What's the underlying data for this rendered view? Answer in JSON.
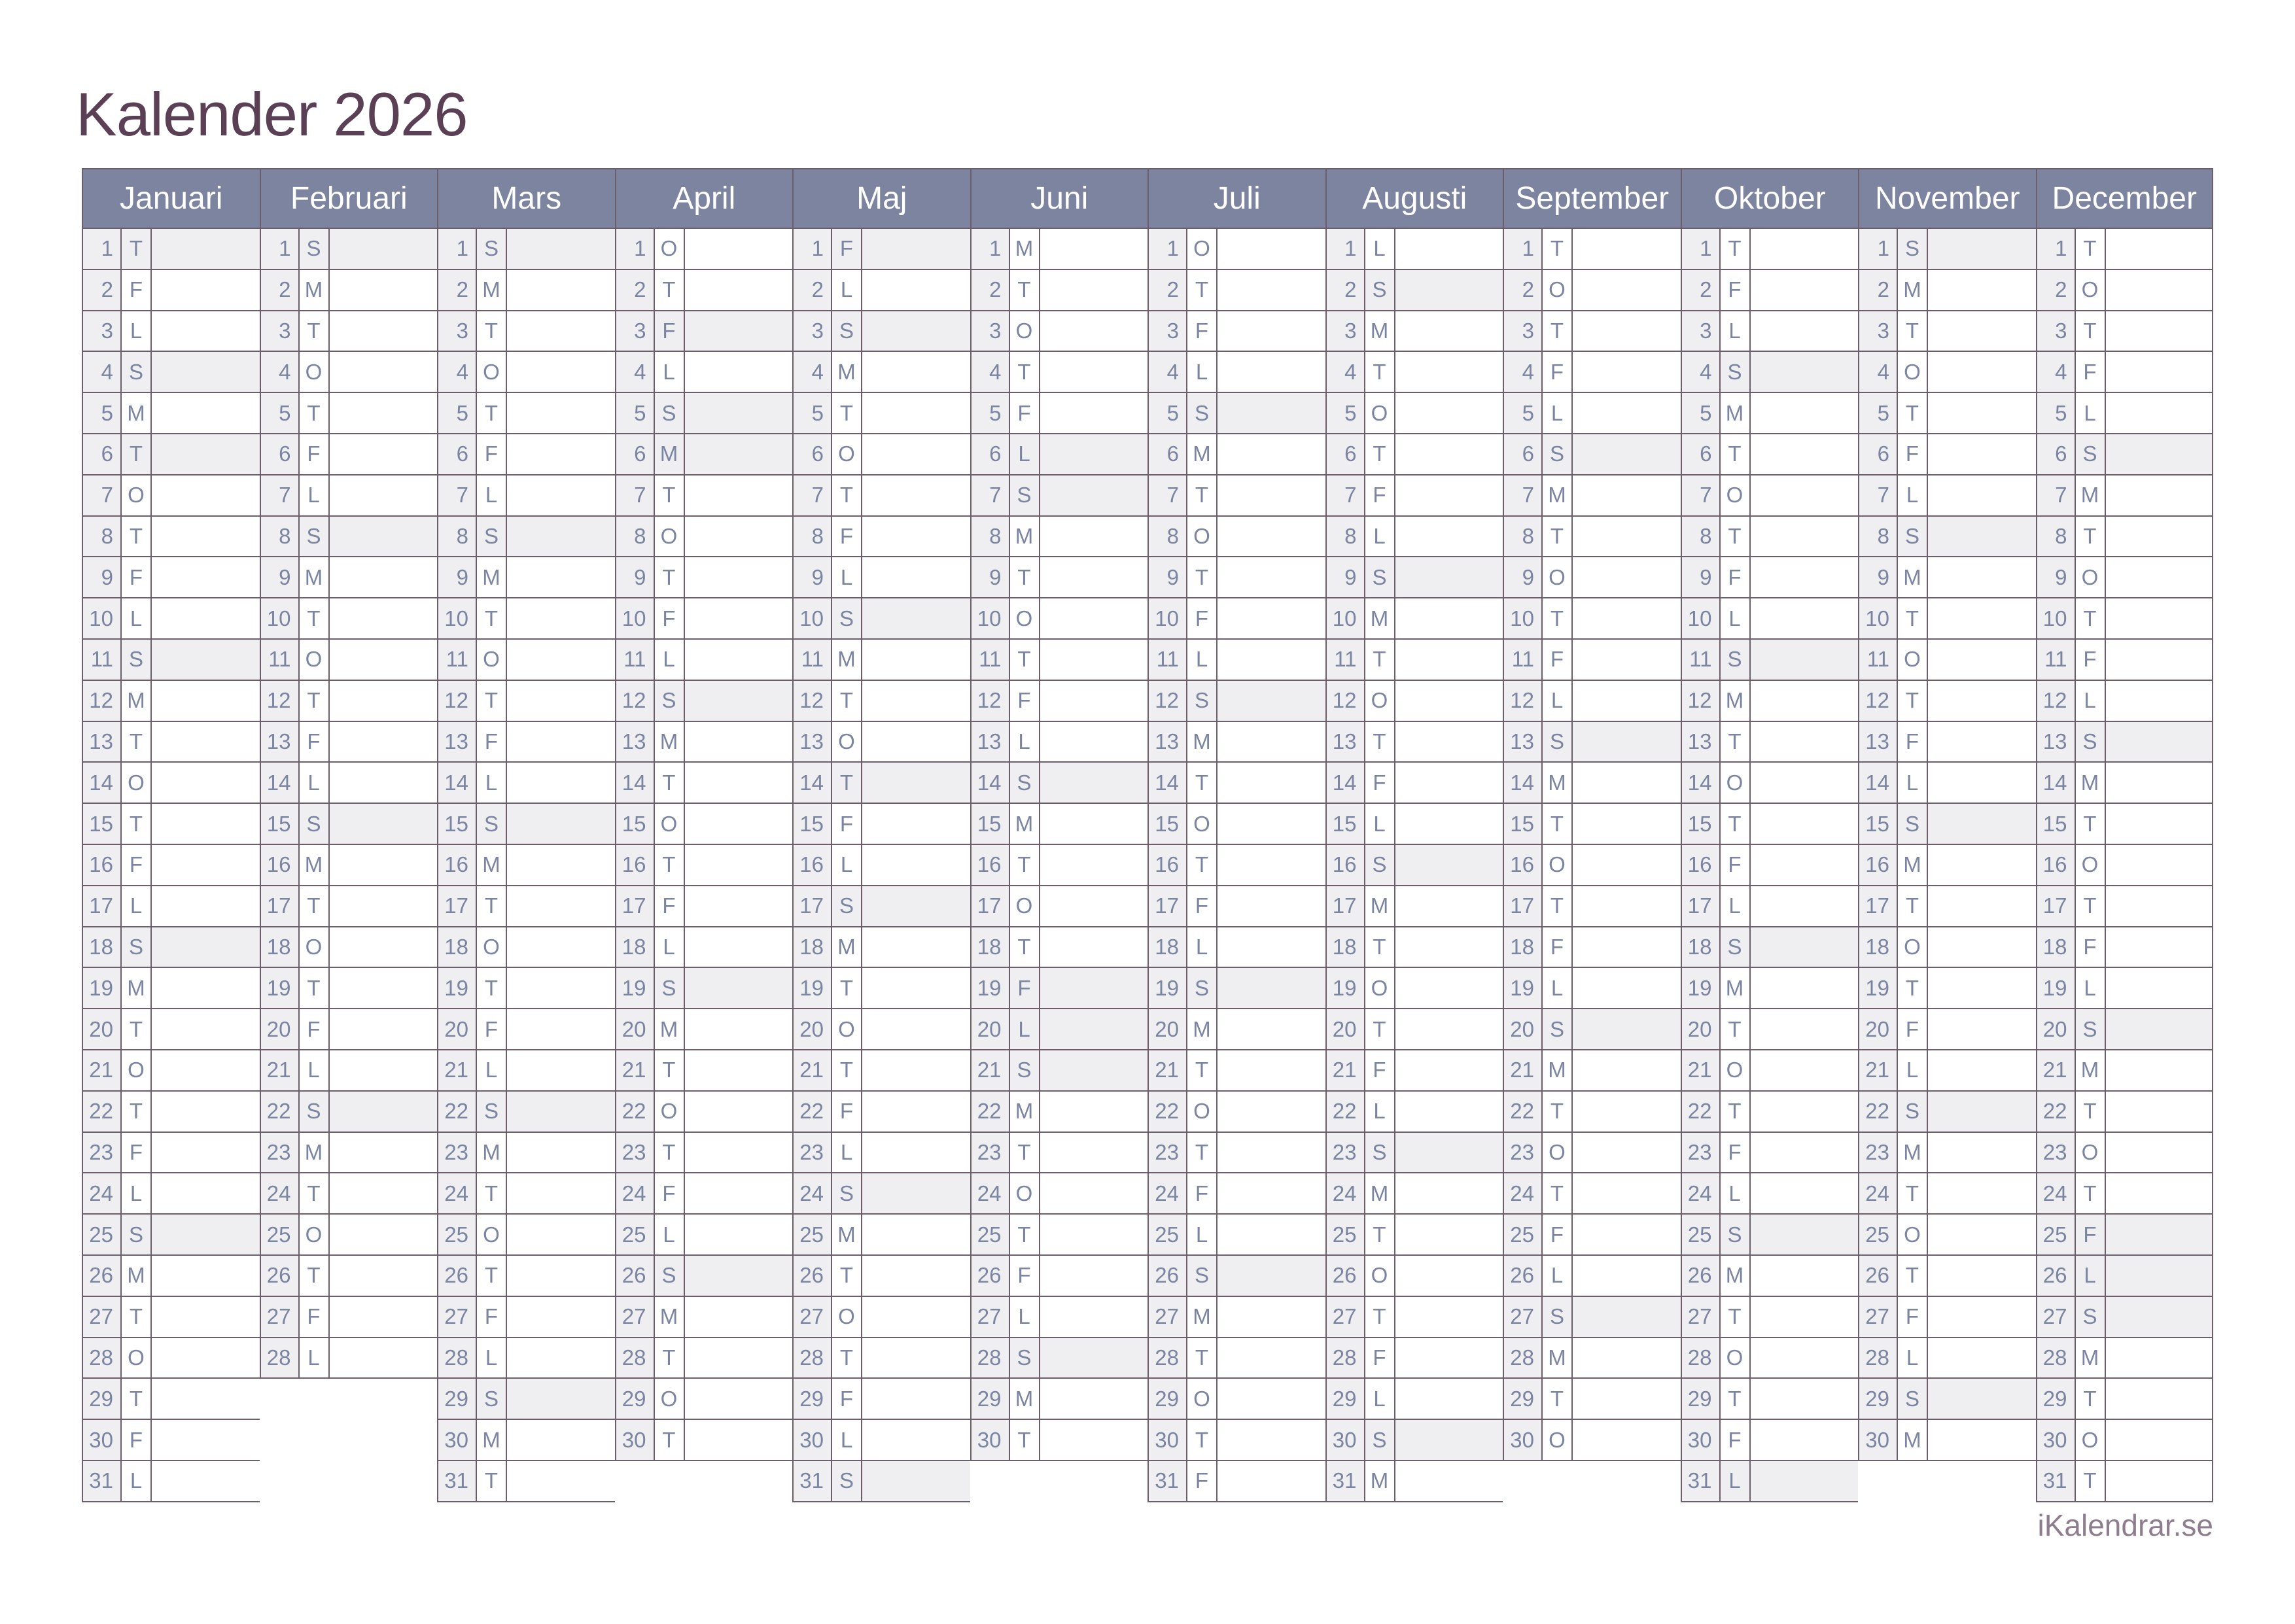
{
  "title": "Kalender 2026",
  "footer": {
    "brand": "iKalendrar.se"
  },
  "colors": {
    "header_bg": "#7d84a0",
    "header_text": "#ffffff",
    "day_text": "#7b84a1",
    "highlight_bg": "#efeff1",
    "number_cell_bg": "#efeff1",
    "border": "#6d5e6b",
    "title_color": "#5a3f55",
    "brand_color": "#8d7d8d"
  },
  "weekday_letter_legend": [
    "M",
    "T",
    "O",
    "T",
    "F",
    "L",
    "S"
  ],
  "months": [
    {
      "name": "Januari",
      "letters": "TFLSMTOTFLSMTOTFLSMTOTFLSMTOTFL",
      "highlighted_days": [
        1,
        4,
        6,
        11,
        18,
        25
      ]
    },
    {
      "name": "Februari",
      "letters": "SMTOTFLSMTOTFLSMTOTFLSMTOTFL",
      "highlighted_days": [
        1,
        8,
        15,
        22
      ]
    },
    {
      "name": "Mars",
      "letters": "SMTOTFLSMTOTFLSMTOTFLSMTOTFLSMT",
      "highlighted_days": [
        1,
        8,
        15,
        22,
        29
      ]
    },
    {
      "name": "April",
      "letters": "OTFLSMTOTFLSMTOTFLSMTOTFLSMTOT",
      "highlighted_days": [
        3,
        5,
        6,
        12,
        19,
        26
      ]
    },
    {
      "name": "Maj",
      "letters": "FLSMTOTFLSMTOTFLSMTOTFLSMTOTFLS",
      "highlighted_days": [
        1,
        3,
        10,
        14,
        17,
        24,
        31
      ]
    },
    {
      "name": "Juni",
      "letters": "MTOTFLSMTOTFLSMTOTFLSMTOTFLSMT",
      "highlighted_days": [
        6,
        7,
        14,
        19,
        20,
        21,
        28
      ]
    },
    {
      "name": "Juli",
      "letters": "OTFLSMTOTFLSMTOTFLSMTOTFLSMTOTF",
      "highlighted_days": [
        5,
        12,
        19,
        26
      ]
    },
    {
      "name": "Augusti",
      "letters": "LSMTOTFLSMTOTFLSMTOTFLSMTOTFLSM",
      "highlighted_days": [
        2,
        9,
        16,
        23,
        30
      ]
    },
    {
      "name": "September",
      "letters": "TOTFLSMTOTFLSMTOTFLSMTOTFLSMTO",
      "highlighted_days": [
        6,
        13,
        20,
        27
      ]
    },
    {
      "name": "Oktober",
      "letters": "TFLSMTOTFLSMTOTFLSMTOTFLSMTOTFL",
      "highlighted_days": [
        4,
        11,
        18,
        25,
        31
      ]
    },
    {
      "name": "November",
      "letters": "SMTOTFLSMTOTFLSMTOTFLSMTOTFLSM",
      "highlighted_days": [
        1,
        8,
        15,
        22,
        29
      ]
    },
    {
      "name": "December",
      "letters": "TOTFLSMTOTFLSMTOTFLSMTOTFLSMTOT",
      "highlighted_days": [
        6,
        13,
        20,
        25,
        26,
        27
      ]
    }
  ]
}
